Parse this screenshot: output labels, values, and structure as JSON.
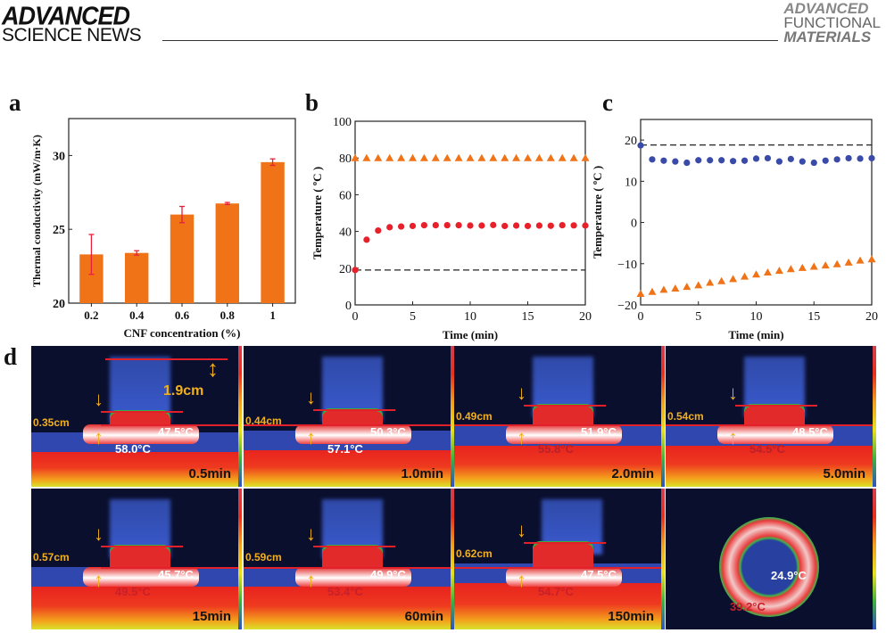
{
  "header": {
    "publisher_line1": "ADVANCED",
    "publisher_line2": "SCIENCE NEWS",
    "journal_line1": "ADVANCED",
    "journal_line2": "FUNCTIONAL",
    "journal_line3": "MATERIALS"
  },
  "panel_labels": {
    "a": "a",
    "b": "b",
    "c": "c",
    "d": "d"
  },
  "chart_data": [
    {
      "type": "bar",
      "panel": "a",
      "categories": [
        "0.2",
        "0.4",
        "0.6",
        "0.8",
        "1"
      ],
      "values": [
        23.3,
        23.4,
        26.0,
        26.75,
        29.55
      ],
      "errors": [
        1.35,
        0.15,
        0.55,
        0.07,
        0.22
      ],
      "xlabel": "CNF concentration (%)",
      "ylabel": "Thermal conductivity (mW/m·K)",
      "ylim": [
        20,
        32.5
      ],
      "yticks": [
        "20",
        "25",
        "30"
      ],
      "bar_color": "#f07318",
      "error_color": "#e8203a",
      "grid": false
    },
    {
      "type": "scatter",
      "panel": "b",
      "x": [
        0,
        1,
        2,
        3,
        4,
        5,
        6,
        7,
        8,
        9,
        10,
        11,
        12,
        13,
        14,
        15,
        16,
        17,
        18,
        19,
        20
      ],
      "series": [
        {
          "marker": "triangle",
          "color": "#f07318",
          "values": [
            80,
            80,
            80,
            80,
            80,
            80,
            80,
            80,
            80,
            80,
            80,
            80,
            80,
            80,
            80,
            80,
            80,
            80,
            80,
            80,
            80
          ]
        },
        {
          "marker": "circle",
          "color": "#e8202a",
          "values": [
            19,
            35.5,
            40.5,
            42.3,
            42.7,
            43,
            43.4,
            43.4,
            43.4,
            43.4,
            43.2,
            43.2,
            43.5,
            43,
            43.2,
            43,
            43.2,
            43.1,
            43.4,
            43.3,
            43.2
          ]
        }
      ],
      "reference_line": 19,
      "xlabel": "Time (min)",
      "ylabel": "Temperature ( ºC )",
      "xlim": [
        0,
        20
      ],
      "ylim": [
        0,
        100
      ],
      "xticks": [
        "0",
        "5",
        "10",
        "15",
        "20"
      ],
      "yticks": [
        "0",
        "20",
        "40",
        "60",
        "80",
        "100"
      ],
      "grid": false
    },
    {
      "type": "scatter",
      "panel": "c",
      "x": [
        0,
        1,
        2,
        3,
        4,
        5,
        6,
        7,
        8,
        9,
        10,
        11,
        12,
        13,
        14,
        15,
        16,
        17,
        18,
        19,
        20
      ],
      "series": [
        {
          "marker": "circle",
          "color": "#3a4aa8",
          "values": [
            18.7,
            15.3,
            15,
            14.8,
            14.5,
            15.1,
            15.1,
            15.1,
            14.9,
            15,
            15.5,
            15.6,
            14.8,
            15.4,
            14.8,
            14.5,
            15,
            15.3,
            15.6,
            15.5,
            15.6
          ]
        },
        {
          "marker": "triangle",
          "color": "#f07318",
          "values": [
            -17.3,
            -16.8,
            -16.3,
            -16,
            -15.6,
            -15.2,
            -14.6,
            -14.2,
            -13.7,
            -13.1,
            -12.6,
            -12.1,
            -11.7,
            -11.3,
            -11,
            -10.7,
            -10.4,
            -10.1,
            -9.7,
            -9.2,
            -8.9
          ]
        }
      ],
      "reference_line": 18.8,
      "xlabel": "Time (min)",
      "ylabel": "Temperature ( ºC )",
      "xlim": [
        0,
        20
      ],
      "ylim": [
        -20,
        25
      ],
      "xticks": [
        "0",
        "5",
        "10",
        "15",
        "20"
      ],
      "yticks": [
        "-20",
        "-10",
        "0",
        "10",
        "20"
      ],
      "grid": false
    }
  ],
  "thermal_images": [
    {
      "time": "0.5min",
      "thickness": "0.35cm",
      "height_label": "1.9cm",
      "temps": [
        {
          "text": "47.5°C",
          "color": "#ffffff"
        },
        {
          "text": "58.0°C",
          "color": "#ffffff"
        }
      ]
    },
    {
      "time": "1.0min",
      "thickness": "0.44cm",
      "temps": [
        {
          "text": "50.3°C",
          "color": "#ffffff"
        },
        {
          "text": "57.1°C",
          "color": "#ffffff"
        }
      ]
    },
    {
      "time": "2.0min",
      "thickness": "0.49cm",
      "temps": [
        {
          "text": "51.9°C",
          "color": "#ffffff"
        },
        {
          "text": "55.8°C",
          "color": "#b8202a"
        }
      ]
    },
    {
      "time": "5.0min",
      "thickness": "0.54cm",
      "temps": [
        {
          "text": "48.5°C",
          "color": "#ffffff"
        },
        {
          "text": "54.5°C",
          "color": "#b8202a"
        }
      ]
    },
    {
      "time": "15min",
      "thickness": "0.57cm",
      "temps": [
        {
          "text": "45.7°C",
          "color": "#ffffff"
        },
        {
          "text": "49.5°C",
          "color": "#c8202a"
        }
      ]
    },
    {
      "time": "60min",
      "thickness": "0.59cm",
      "temps": [
        {
          "text": "49.9°C",
          "color": "#ffffff"
        },
        {
          "text": "53.4°C",
          "color": "#c8202a"
        }
      ]
    },
    {
      "time": "150min",
      "thickness": "0.62cm",
      "temps": [
        {
          "text": "47.5°C",
          "color": "#ffffff"
        },
        {
          "text": "54.7°C",
          "color": "#c8202a"
        }
      ]
    },
    {
      "time": "",
      "thickness": "",
      "ring": true,
      "temps": [
        {
          "text": "24.9°C",
          "color": "#ffffff"
        },
        {
          "text": "39.2°C",
          "color": "#c8202a"
        }
      ]
    }
  ]
}
